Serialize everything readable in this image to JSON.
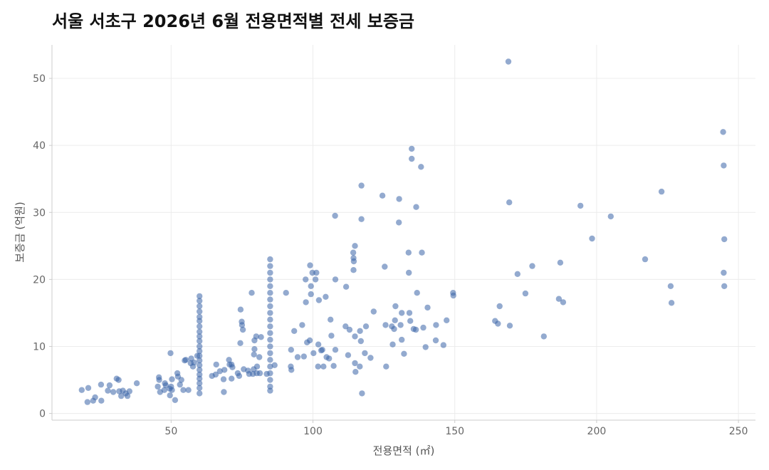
{
  "chart_data": {
    "type": "scatter",
    "title": "서울 서초구 2026년 6월 전용면적별 전세 보증금",
    "xlabel": "전용면적 (㎡)",
    "ylabel": "보증금 (억원)",
    "xlim": [
      8,
      256
    ],
    "ylim": [
      -1,
      55
    ],
    "xticks": [
      50,
      100,
      150,
      200,
      250
    ],
    "yticks": [
      0,
      10,
      20,
      30,
      40,
      50
    ],
    "grid": true,
    "legend": "none",
    "colors": {
      "point": "#3a65a8"
    },
    "points": [
      [
        18.5,
        3.5
      ],
      [
        20.5,
        1.7
      ],
      [
        20.8,
        3.8
      ],
      [
        22.5,
        1.9
      ],
      [
        23.2,
        2.4
      ],
      [
        25.3,
        4.3
      ],
      [
        25.4,
        1.9
      ],
      [
        27.7,
        3.4
      ],
      [
        28.3,
        4.2
      ],
      [
        29.6,
        3.2
      ],
      [
        30.8,
        5.2
      ],
      [
        31.5,
        5.0
      ],
      [
        31.7,
        3.3
      ],
      [
        32.4,
        2.6
      ],
      [
        33.0,
        3.4
      ],
      [
        34.0,
        3.0
      ],
      [
        34.6,
        2.6
      ],
      [
        35.3,
        3.3
      ],
      [
        37.9,
        4.5
      ],
      [
        45.3,
        4.0
      ],
      [
        45.7,
        5.4
      ],
      [
        45.8,
        5.0
      ],
      [
        46.1,
        3.2
      ],
      [
        47.6,
        3.5
      ],
      [
        47.8,
        4.5
      ],
      [
        48.1,
        4.2
      ],
      [
        49.5,
        3.7
      ],
      [
        49.6,
        2.7
      ],
      [
        49.8,
        9.0
      ],
      [
        50.0,
        4.0
      ],
      [
        50.3,
        5.1
      ],
      [
        50.3,
        3.5
      ],
      [
        51.4,
        2.0
      ],
      [
        52.2,
        6.0
      ],
      [
        52.4,
        5.5
      ],
      [
        53.1,
        4.3
      ],
      [
        53.6,
        5.0
      ],
      [
        54.3,
        3.5
      ],
      [
        54.8,
        7.9
      ],
      [
        55.2,
        8.0
      ],
      [
        56.1,
        3.5
      ],
      [
        56.9,
        7.5
      ],
      [
        57.1,
        8.2
      ],
      [
        57.7,
        7.0
      ],
      [
        58.1,
        7.6
      ],
      [
        59.2,
        8.6
      ],
      [
        60.0,
        17.5
      ],
      [
        60.0,
        16.8
      ],
      [
        60.0,
        16.0
      ],
      [
        60.0,
        15.2
      ],
      [
        60.0,
        14.4
      ],
      [
        60.0,
        13.8
      ],
      [
        60.0,
        13.0
      ],
      [
        60.0,
        12.2
      ],
      [
        60.0,
        11.5
      ],
      [
        60.0,
        10.8
      ],
      [
        60.0,
        10.0
      ],
      [
        60.0,
        9.3
      ],
      [
        60.0,
        8.6
      ],
      [
        60.0,
        7.9
      ],
      [
        60.0,
        7.2
      ],
      [
        60.0,
        6.5
      ],
      [
        60.0,
        5.8
      ],
      [
        60.0,
        5.2
      ],
      [
        60.0,
        4.5
      ],
      [
        60.0,
        3.8
      ],
      [
        60.0,
        3.0
      ],
      [
        64.4,
        5.6
      ],
      [
        65.7,
        5.8
      ],
      [
        65.9,
        7.3
      ],
      [
        67.2,
        6.3
      ],
      [
        68.5,
        5.1
      ],
      [
        68.6,
        3.2
      ],
      [
        68.8,
        6.5
      ],
      [
        70.4,
        8.0
      ],
      [
        70.6,
        7.3
      ],
      [
        71.3,
        5.2
      ],
      [
        71.3,
        7.3
      ],
      [
        71.6,
        6.9
      ],
      [
        73.5,
        6.0
      ],
      [
        74.0,
        5.6
      ],
      [
        74.4,
        10.5
      ],
      [
        74.5,
        15.5
      ],
      [
        74.9,
        13.7
      ],
      [
        75.0,
        13.2
      ],
      [
        75.3,
        12.5
      ],
      [
        75.6,
        6.6
      ],
      [
        77.1,
        6.4
      ],
      [
        77.5,
        5.9
      ],
      [
        78.4,
        18.0
      ],
      [
        78.8,
        5.9
      ],
      [
        79.1,
        6.6
      ],
      [
        79.2,
        8.8
      ],
      [
        79.4,
        10.9
      ],
      [
        79.4,
        9.6
      ],
      [
        80.0,
        11.5
      ],
      [
        80.2,
        6.0
      ],
      [
        80.3,
        7.0
      ],
      [
        81.1,
        8.4
      ],
      [
        81.3,
        6.0
      ],
      [
        81.7,
        11.4
      ],
      [
        83.7,
        5.9
      ],
      [
        84.9,
        23.0
      ],
      [
        84.9,
        22.0
      ],
      [
        84.9,
        21.0
      ],
      [
        84.9,
        20.0
      ],
      [
        84.9,
        19.0
      ],
      [
        84.9,
        18.0
      ],
      [
        84.9,
        17.0
      ],
      [
        84.9,
        16.0
      ],
      [
        84.9,
        15.0
      ],
      [
        84.9,
        14.0
      ],
      [
        84.9,
        13.0
      ],
      [
        84.9,
        12.0
      ],
      [
        84.9,
        11.0
      ],
      [
        84.9,
        10.0
      ],
      [
        84.9,
        9.0
      ],
      [
        84.9,
        8.0
      ],
      [
        84.9,
        7.0
      ],
      [
        84.9,
        6.0
      ],
      [
        84.9,
        5.0
      ],
      [
        84.9,
        4.0
      ],
      [
        84.9,
        3.4
      ],
      [
        86.5,
        7.2
      ],
      [
        90.5,
        18.0
      ],
      [
        92.2,
        7.0
      ],
      [
        92.3,
        9.5
      ],
      [
        92.4,
        6.5
      ],
      [
        93.4,
        12.3
      ],
      [
        94.6,
        8.4
      ],
      [
        96.2,
        13.2
      ],
      [
        96.8,
        8.5
      ],
      [
        97.4,
        20.0
      ],
      [
        97.5,
        16.6
      ],
      [
        97.9,
        10.6
      ],
      [
        98.9,
        10.9
      ],
      [
        99.0,
        22.1
      ],
      [
        99.3,
        17.8
      ],
      [
        99.3,
        19.0
      ],
      [
        99.8,
        21.0
      ],
      [
        100.2,
        9.0
      ],
      [
        100.9,
        20.0
      ],
      [
        101.2,
        21.0
      ],
      [
        101.8,
        7.0
      ],
      [
        101.9,
        10.3
      ],
      [
        102.1,
        16.9
      ],
      [
        102.9,
        9.4
      ],
      [
        103.3,
        9.5
      ],
      [
        103.7,
        7.0
      ],
      [
        104.5,
        17.4
      ],
      [
        104.8,
        8.4
      ],
      [
        105.7,
        8.2
      ],
      [
        106.2,
        14.0
      ],
      [
        106.5,
        11.6
      ],
      [
        107.3,
        7.1
      ],
      [
        107.8,
        29.5
      ],
      [
        107.9,
        20.0
      ],
      [
        107.9,
        9.5
      ],
      [
        111.5,
        13.0
      ],
      [
        111.7,
        18.9
      ],
      [
        112.4,
        8.7
      ],
      [
        112.9,
        12.5
      ],
      [
        114.2,
        24.0
      ],
      [
        114.3,
        23.2
      ],
      [
        114.3,
        21.4
      ],
      [
        114.4,
        22.7
      ],
      [
        114.8,
        25.0
      ],
      [
        114.8,
        11.5
      ],
      [
        114.8,
        7.5
      ],
      [
        115.0,
        6.2
      ],
      [
        116.5,
        7.0
      ],
      [
        116.6,
        12.3
      ],
      [
        116.9,
        10.8
      ],
      [
        117.1,
        29.0
      ],
      [
        117.1,
        34.0
      ],
      [
        117.3,
        3.0
      ],
      [
        118.3,
        9.0
      ],
      [
        118.7,
        13.0
      ],
      [
        120.3,
        8.3
      ],
      [
        121.4,
        15.2
      ],
      [
        124.5,
        32.5
      ],
      [
        125.3,
        21.9
      ],
      [
        125.6,
        13.2
      ],
      [
        125.8,
        7.0
      ],
      [
        127.8,
        13.0
      ],
      [
        128.1,
        10.3
      ],
      [
        128.6,
        12.6
      ],
      [
        128.9,
        13.9
      ],
      [
        129.1,
        16.0
      ],
      [
        130.3,
        28.5
      ],
      [
        130.4,
        32.0
      ],
      [
        130.9,
        13.2
      ],
      [
        131.3,
        15.0
      ],
      [
        131.3,
        11.0
      ],
      [
        132.1,
        8.9
      ],
      [
        133.7,
        24.0
      ],
      [
        133.8,
        21.0
      ],
      [
        134.0,
        15.0
      ],
      [
        134.3,
        13.8
      ],
      [
        134.8,
        38.0
      ],
      [
        134.8,
        39.5
      ],
      [
        135.5,
        12.6
      ],
      [
        136.3,
        12.5
      ],
      [
        136.4,
        30.8
      ],
      [
        136.7,
        18.0
      ],
      [
        138.1,
        36.8
      ],
      [
        138.4,
        24.0
      ],
      [
        138.9,
        12.8
      ],
      [
        139.7,
        9.9
      ],
      [
        140.4,
        15.8
      ],
      [
        143.3,
        10.9
      ],
      [
        143.4,
        13.2
      ],
      [
        146.0,
        10.2
      ],
      [
        147.1,
        13.9
      ],
      [
        149.4,
        18.0
      ],
      [
        149.5,
        17.6
      ],
      [
        164.2,
        13.8
      ],
      [
        165.2,
        13.4
      ],
      [
        165.8,
        16.0
      ],
      [
        168.9,
        52.5
      ],
      [
        169.2,
        31.5
      ],
      [
        169.4,
        13.1
      ],
      [
        172.1,
        20.8
      ],
      [
        174.9,
        17.9
      ],
      [
        177.3,
        22.0
      ],
      [
        181.4,
        11.5
      ],
      [
        186.7,
        17.1
      ],
      [
        187.2,
        22.5
      ],
      [
        188.2,
        16.6
      ],
      [
        194.3,
        31.0
      ],
      [
        198.4,
        26.1
      ],
      [
        205.0,
        29.4
      ],
      [
        217.1,
        23.0
      ],
      [
        222.9,
        33.1
      ],
      [
        226.1,
        19.0
      ],
      [
        226.4,
        16.5
      ],
      [
        244.6,
        42.0
      ],
      [
        244.8,
        37.0
      ],
      [
        245.0,
        26.0
      ],
      [
        244.8,
        21.0
      ],
      [
        245.0,
        19.0
      ]
    ]
  }
}
